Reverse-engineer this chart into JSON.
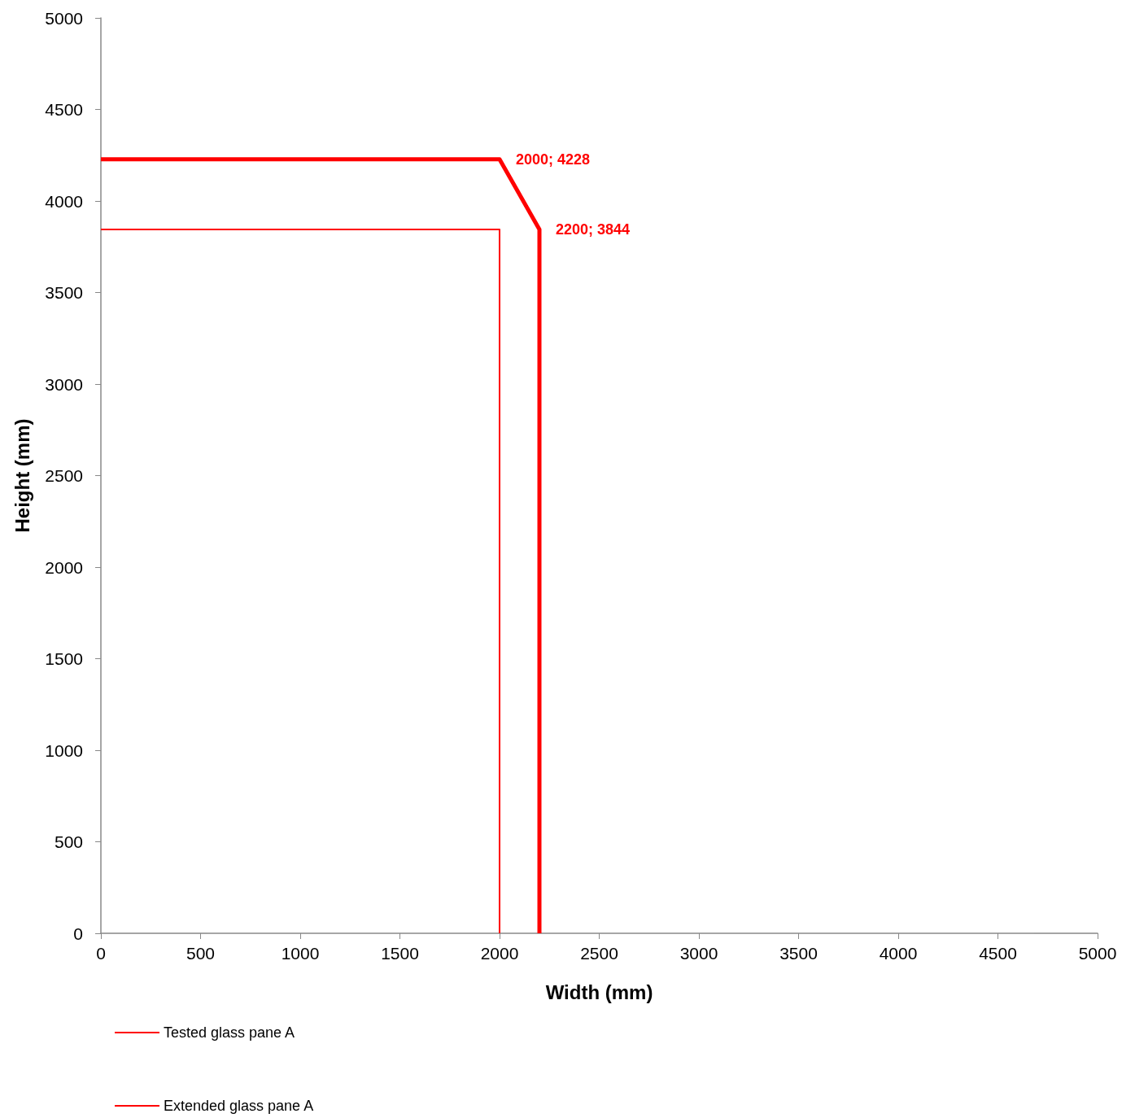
{
  "chart_data": {
    "type": "line",
    "xlabel": "Width (mm)",
    "ylabel": "Height (mm)",
    "xlim": [
      0,
      5000
    ],
    "xticks": [
      0,
      500,
      1000,
      1500,
      2000,
      2500,
      3000,
      3500,
      4000,
      4500,
      5000
    ],
    "ylim": [
      0,
      5000
    ],
    "yticks": [
      0,
      500,
      1000,
      1500,
      2000,
      2500,
      3000,
      3500,
      4000,
      4500,
      5000
    ],
    "series": [
      {
        "name": "Tested glass pane A",
        "color": "#ff0000",
        "x": [
          0,
          2000,
          2000
        ],
        "values": [
          3844,
          3844,
          0
        ],
        "line_style": "solid"
      },
      {
        "name": "Extended glass pane A",
        "color": "#ff0000",
        "x": [
          0,
          2000,
          2200,
          2200
        ],
        "values": [
          4228,
          4228,
          3844,
          0
        ],
        "line_style": "solid"
      }
    ],
    "annotations": [
      {
        "text": "2000; 4228",
        "x": 2000,
        "y": 4228
      },
      {
        "text": "2200; 3844",
        "x": 2200,
        "y": 3844
      }
    ],
    "grid": false,
    "legend": "bottom left",
    "marker": "none"
  }
}
